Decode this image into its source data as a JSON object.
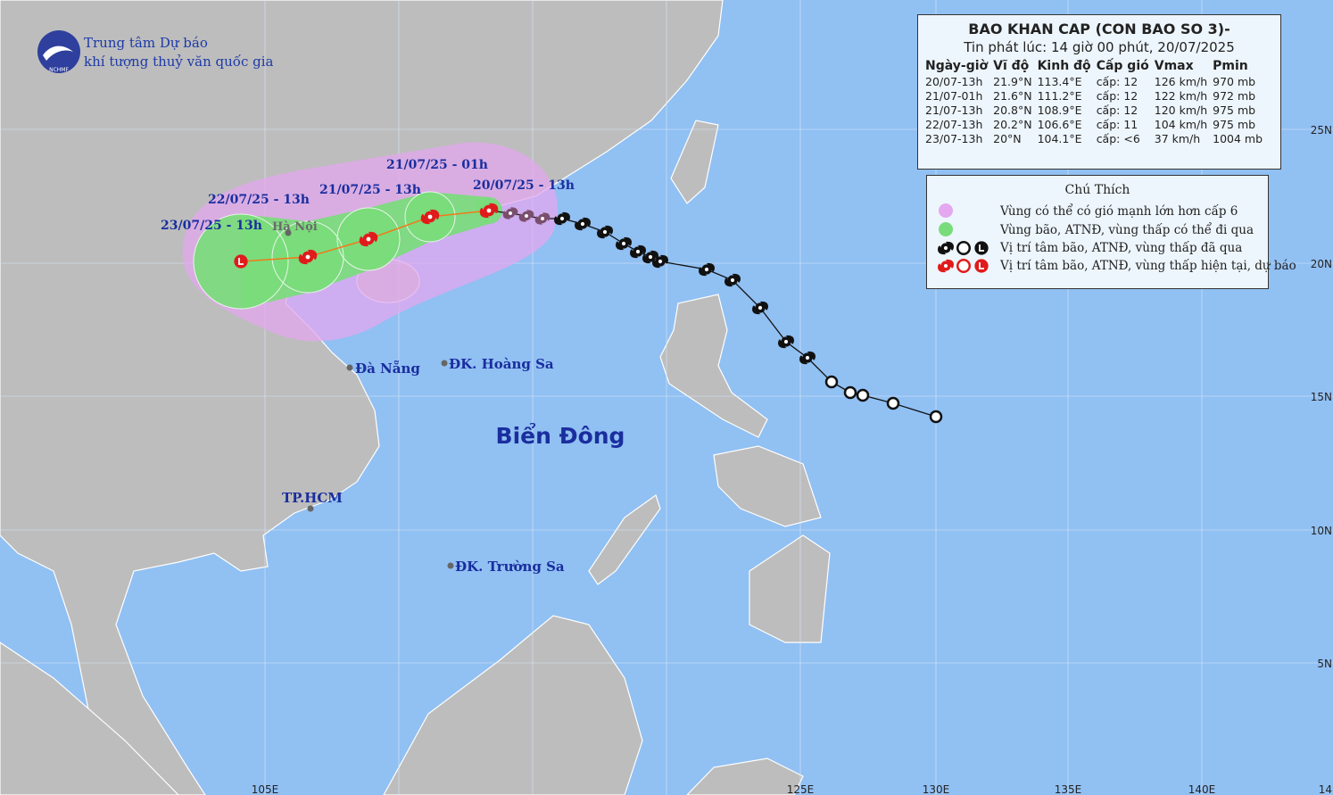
{
  "header": {
    "org_line1": "Trung tâm Dự báo",
    "org_line2": "khí tượng thuỷ văn quốc gia",
    "logo_text": "NCHMF"
  },
  "bulletin": {
    "title": "BAO KHAN CAP (CON BAO SO 3)-",
    "subtitle": "Tin phát lúc: 14 giờ 00 phút, 20/07/2025",
    "columns": [
      "Ngày-giờ",
      "Vĩ độ",
      "Kinh độ",
      "Cấp gió",
      "Vmax",
      "Pmin"
    ],
    "rows": [
      [
        "20/07-13h",
        "21.9°N",
        "113.4°E",
        "cấp: 12",
        "126 km/h",
        "970 mb"
      ],
      [
        "21/07-01h",
        "21.6°N",
        "111.2°E",
        "cấp: 12",
        "122 km/h",
        "972 mb"
      ],
      [
        "21/07-13h",
        "20.8°N",
        "108.9°E",
        "cấp: 12",
        "120 km/h",
        "975 mb"
      ],
      [
        "22/07-13h",
        "20.2°N",
        "106.6°E",
        "cấp: 11",
        "104 km/h",
        "975 mb"
      ],
      [
        "23/07-13h",
        "20°N",
        "104.1°E",
        "cấp: <6",
        "37 km/h",
        "1004 mb"
      ]
    ]
  },
  "legend": {
    "title": "Chú Thích",
    "items": [
      "Vùng có thể có gió mạnh lớn hơn cấp 6",
      "Vùng bão, ATNĐ, vùng thấp có thể đi qua",
      "Vị trí tâm bão, ATNĐ, vùng thấp đã qua",
      "Vị trí tâm bão, ATNĐ, vùng thấp hiện tại, dự báo"
    ]
  },
  "forecast_labels": [
    "20/07/25 - 13h",
    "21/07/25 - 01h",
    "21/07/25 - 13h",
    "22/07/25 - 13h",
    "23/07/25 - 13h"
  ],
  "places": [
    "Hà Nội",
    "Đà Nẵng",
    "ĐK. Hoàng Sa",
    "Biển Đông",
    "TP.HCM",
    "ĐK. Trường Sa"
  ],
  "lon_labels": [
    "105E",
    "125E",
    "130E",
    "135E",
    "140E",
    "14"
  ],
  "lat_labels": [
    "25N",
    "20N",
    "15N",
    "10N",
    "5N"
  ]
}
